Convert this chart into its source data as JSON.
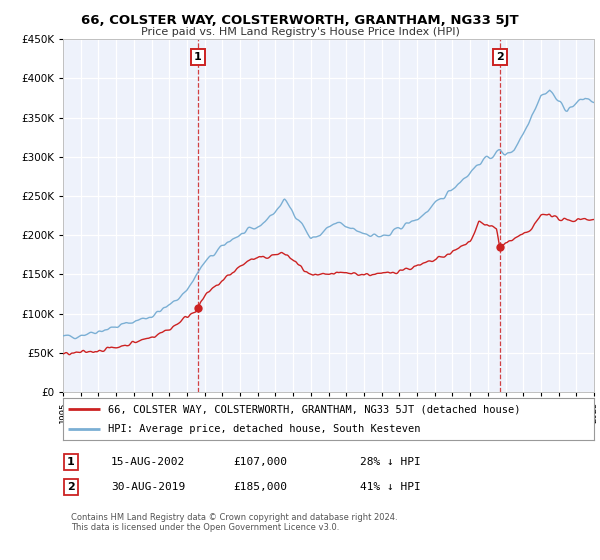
{
  "title": "66, COLSTER WAY, COLSTERWORTH, GRANTHAM, NG33 5JT",
  "subtitle": "Price paid vs. HM Land Registry's House Price Index (HPI)",
  "legend_line1": "66, COLSTER WAY, COLSTERWORTH, GRANTHAM, NG33 5JT (detached house)",
  "legend_line2": "HPI: Average price, detached house, South Kesteven",
  "footnote": "Contains HM Land Registry data © Crown copyright and database right 2024.\nThis data is licensed under the Open Government Licence v3.0.",
  "marker1_date": "15-AUG-2002",
  "marker1_price": "£107,000",
  "marker1_hpi": "28% ↓ HPI",
  "marker2_date": "30-AUG-2019",
  "marker2_price": "£185,000",
  "marker2_hpi": "41% ↓ HPI",
  "price_color": "#cc2222",
  "hpi_color": "#7bafd4",
  "vline_color": "#cc2222",
  "ylim": [
    0,
    450000
  ],
  "yticks": [
    0,
    50000,
    100000,
    150000,
    200000,
    250000,
    300000,
    350000,
    400000,
    450000
  ],
  "xlim_start": 1995,
  "xlim_end": 2025,
  "marker1_x_year": 2002.625,
  "marker1_y": 107000,
  "marker2_x_year": 2019.664,
  "marker2_y": 185000,
  "background_color": "#eef2fb",
  "grid_color": "#ffffff",
  "spine_color": "#c0c0c0"
}
